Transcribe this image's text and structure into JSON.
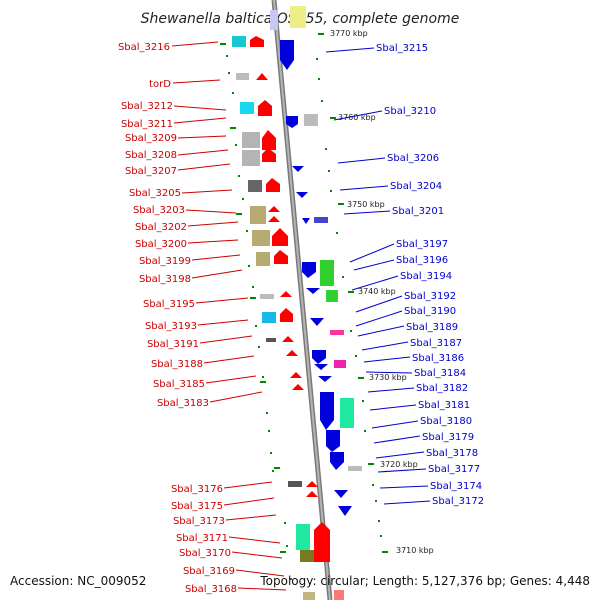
{
  "title": "Shewanella baltica OS155, complete genome",
  "footer": {
    "accession": "Accession: NC_009052",
    "stats": "Topology: circular; Length: 5,127,376 bp; Genes: 4,448"
  },
  "colors": {
    "forward": "#ff0000",
    "reverse": "#0000dd",
    "left_label": "#cc0000",
    "right_label": "#0000cc",
    "tick": "#008800",
    "backbone": "#8c8c8c"
  },
  "kbp_labels": [
    "3770 kbp",
    "3760 kbp",
    "3750 kbp",
    "3740 kbp",
    "3730 kbp",
    "3720 kbp",
    "3710 kbp"
  ],
  "left_genes": [
    "Sbal_3216",
    "torD",
    "Sbal_3212",
    "Sbal_3211",
    "Sbal_3209",
    "Sbal_3208",
    "Sbal_3207",
    "Sbal_3205",
    "Sbal_3203",
    "Sbal_3202",
    "Sbal_3200",
    "Sbal_3199",
    "Sbal_3198",
    "Sbal_3195",
    "Sbal_3193",
    "Sbal_3191",
    "Sbal_3188",
    "Sbal_3185",
    "Sbal_3183",
    "Sbal_3176",
    "Sbal_3175",
    "Sbal_3173",
    "Sbal_3171",
    "Sbal_3170",
    "Sbal_3169",
    "Sbal_3168"
  ],
  "right_genes": [
    "Sbal_3215",
    "Sbal_3210",
    "Sbal_3206",
    "Sbal_3204",
    "Sbal_3201",
    "Sbal_3197",
    "Sbal_3196",
    "Sbal_3194",
    "Sbal_3192",
    "Sbal_3190",
    "Sbal_3189",
    "Sbal_3187",
    "Sbal_3186",
    "Sbal_3184",
    "Sbal_3182",
    "Sbal_3181",
    "Sbal_3180",
    "Sbal_3179",
    "Sbal_3178",
    "Sbal_3177",
    "Sbal_3174",
    "Sbal_3172"
  ]
}
